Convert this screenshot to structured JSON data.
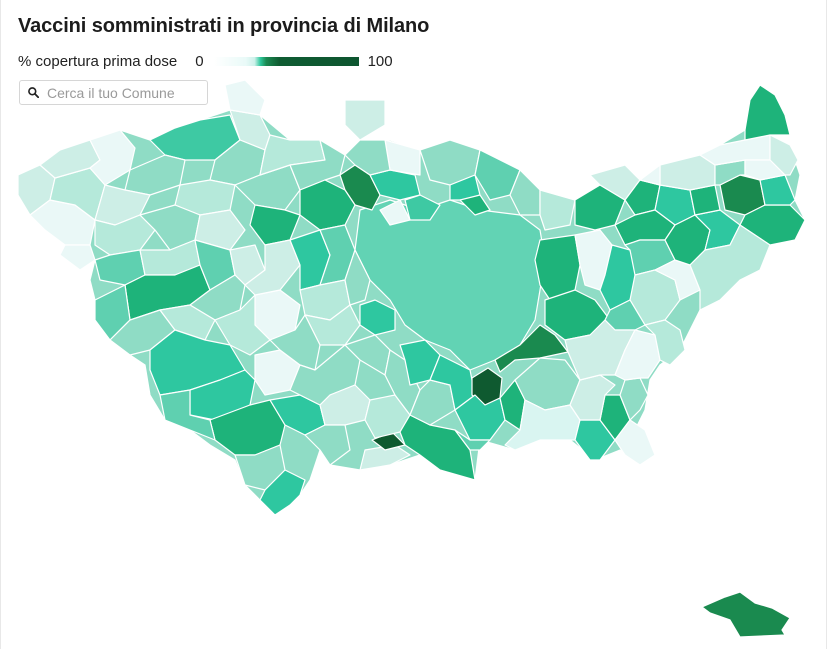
{
  "title": "Vaccini somministrati in provincia di Milano",
  "legend": {
    "label": "% copertura prima dose",
    "min": "0",
    "max": "100"
  },
  "search": {
    "placeholder": "Cerca il tuo Comune",
    "value": ""
  },
  "colors": {
    "very_light": "#eaf8f7",
    "light": "#cdeee6",
    "mid_light": "#8fdcc5",
    "mid": "#5fd0b0",
    "teal": "#2ec7a0",
    "green": "#1eb37a",
    "dark_green": "#1a8a4f",
    "darkest_green": "#0f5a30"
  }
}
